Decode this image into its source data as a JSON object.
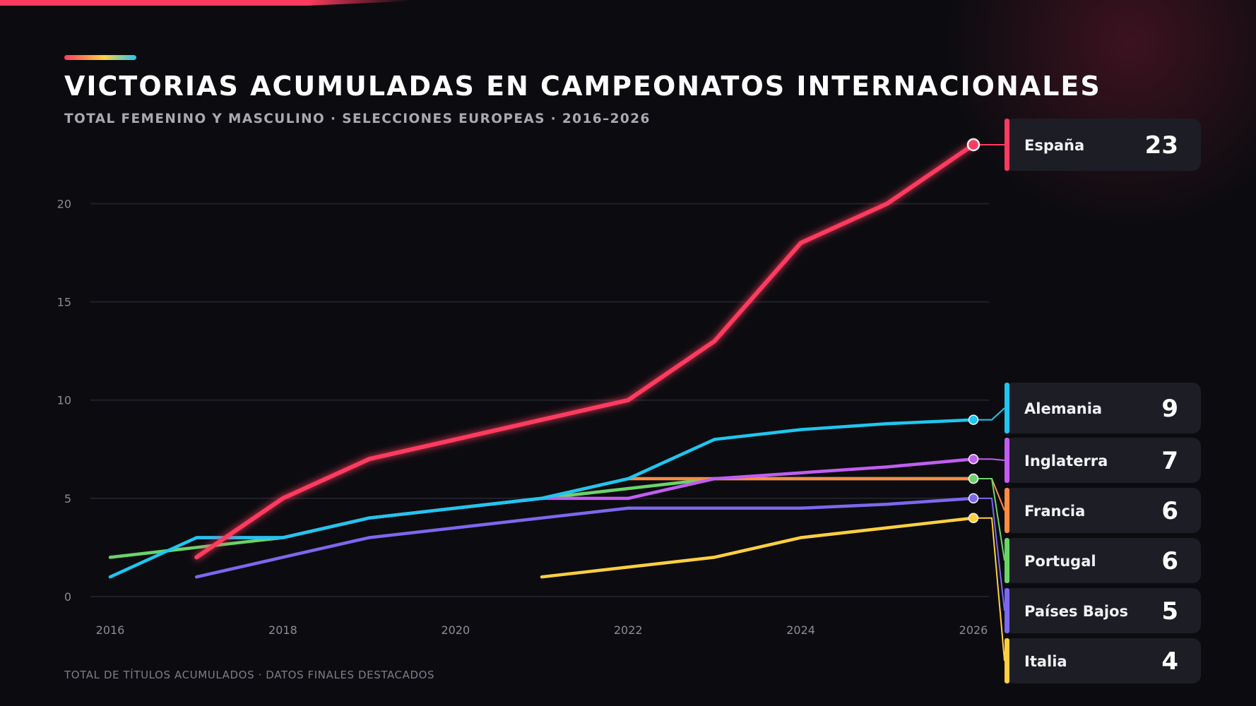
{
  "header": {
    "title": "VICTORIAS ACUMULADAS EN CAMPEONATOS INTERNACIONALES",
    "subtitle": "TOTAL FEMENINO Y MASCULINO · SELECCIONES EUROPEAS · 2016–2026"
  },
  "footer": {
    "note": "TOTAL DE TÍTULOS ACUMULADOS · DATOS FINALES DESTACADOS"
  },
  "chart_data": {
    "type": "line",
    "title": "VICTORIAS ACUMULADAS EN CAMPEONATOS INTERNACIONALES",
    "subtitle": "TOTAL FEMENINO Y MASCULINO · SELECCIONES EUROPEAS · 2016–2026",
    "xlabel": "",
    "ylabel": "",
    "xlim": [
      2016,
      2026
    ],
    "ylim": [
      0,
      23
    ],
    "x_ticks": [
      2016,
      2018,
      2020,
      2022,
      2024,
      2026
    ],
    "y_ticks": [
      0,
      5,
      10,
      15,
      20
    ],
    "grid": true,
    "legend": "end-labels-right",
    "series": [
      {
        "name": "España",
        "color": "#ff3b5f",
        "highlight": true,
        "x": [
          2017,
          2018,
          2019,
          2020,
          2021,
          2022,
          2023,
          2024,
          2025,
          2026
        ],
        "y": [
          2,
          5,
          7,
          8,
          9,
          10,
          13,
          18,
          20,
          23
        ],
        "final": 23
      },
      {
        "name": "Alemania",
        "color": "#1fc6f0",
        "x": [
          2016,
          2017,
          2018,
          2019,
          2020,
          2021,
          2022,
          2023,
          2024,
          2025,
          2026
        ],
        "y": [
          1,
          3,
          3,
          4,
          4.5,
          5,
          6,
          8,
          8.5,
          8.8,
          9
        ],
        "final": 9
      },
      {
        "name": "Inglaterra",
        "color": "#c15ef2",
        "x": [
          2017,
          2018,
          2019,
          2020,
          2021,
          2022,
          2023,
          2024,
          2025,
          2026
        ],
        "y": [
          3,
          3,
          4,
          4.5,
          5,
          5,
          6,
          6.3,
          6.6,
          7
        ],
        "final": 7
      },
      {
        "name": "Francia",
        "color": "#ff8c42",
        "x": [
          2018,
          2019,
          2020,
          2021,
          2022,
          2023,
          2024,
          2025,
          2026
        ],
        "y": [
          3,
          4,
          4.5,
          5,
          6,
          6,
          6,
          6,
          6
        ],
        "final": 6
      },
      {
        "name": "Portugal",
        "color": "#6ad46a",
        "x": [
          2016,
          2017,
          2018,
          2019,
          2020,
          2021,
          2022,
          2023,
          2024,
          2025,
          2026
        ],
        "y": [
          2,
          2.5,
          3,
          4,
          4.5,
          5,
          5.5,
          6,
          6,
          6,
          6
        ],
        "final": 6
      },
      {
        "name": "Países Bajos",
        "color": "#7b68ee",
        "x": [
          2017,
          2018,
          2019,
          2020,
          2021,
          2022,
          2023,
          2024,
          2025,
          2026
        ],
        "y": [
          1,
          2,
          3,
          3.5,
          4,
          4.5,
          4.5,
          4.5,
          4.7,
          5
        ],
        "final": 5
      },
      {
        "name": "Italia",
        "color": "#ffcf40",
        "x": [
          2021,
          2022,
          2023,
          2024,
          2025,
          2026
        ],
        "y": [
          1,
          1.5,
          2,
          3,
          3.5,
          4
        ],
        "final": 4
      }
    ]
  }
}
